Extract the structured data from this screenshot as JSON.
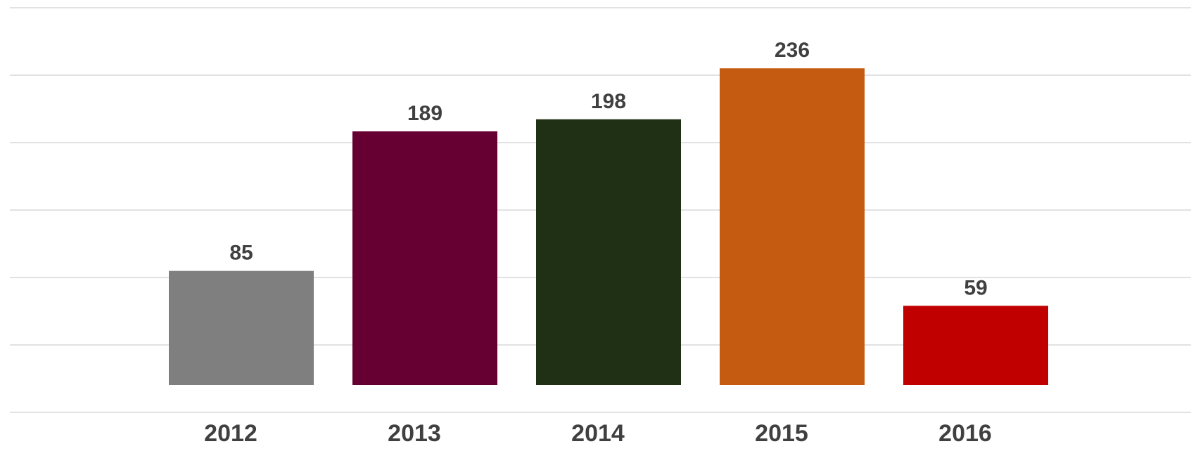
{
  "chart_data": {
    "type": "bar",
    "categories": [
      "2012",
      "2013",
      "2014",
      "2015",
      "2016"
    ],
    "values": [
      85,
      189,
      198,
      236,
      59
    ],
    "colors": [
      "#7f7f7f",
      "#660033",
      "#203015",
      "#c55a11",
      "#c00000"
    ],
    "title": "",
    "xlabel": "",
    "ylabel": "",
    "grid": true,
    "legend": "none"
  }
}
